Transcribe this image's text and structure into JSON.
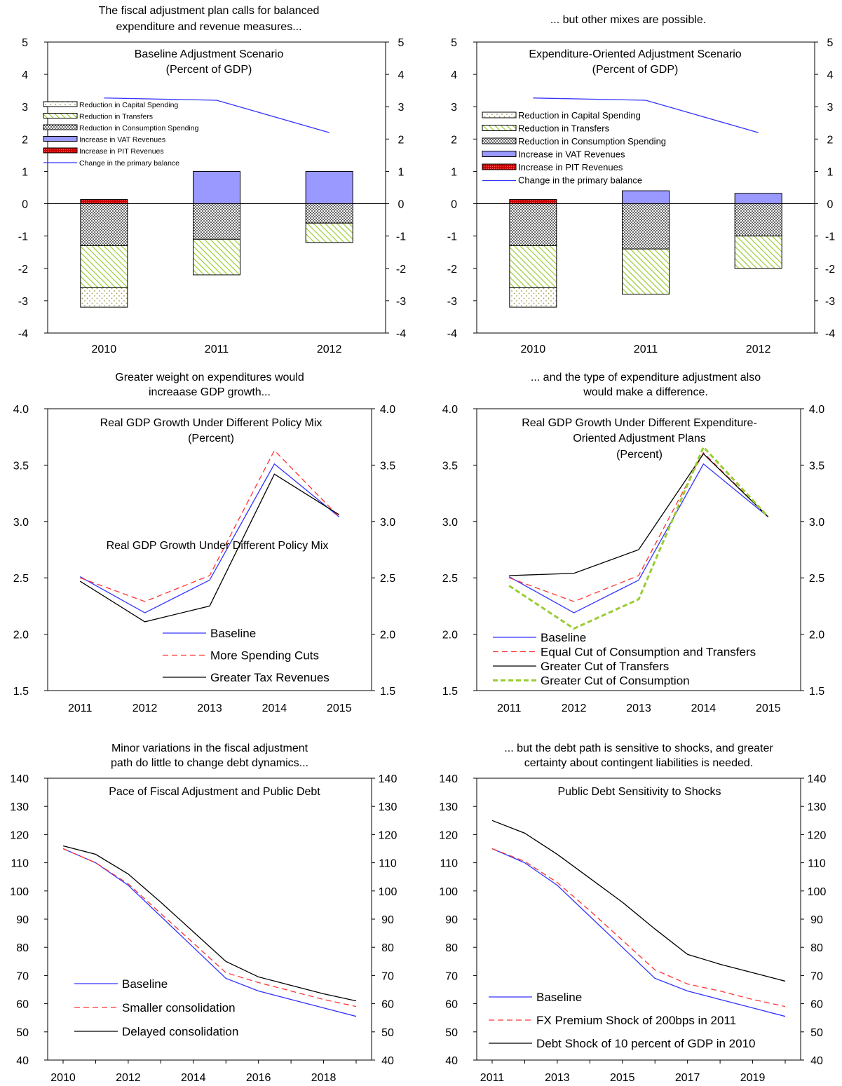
{
  "colors": {
    "line_blue": "#3333ff",
    "line_red": "#ff3333",
    "line_black": "#000000",
    "line_green": "#99cc33",
    "vat_fill": "#9999ff",
    "pit_fill": "#cc0000",
    "transfers_hatch": "#99cc33",
    "capital_dots": "#b8b070"
  },
  "captions": {
    "c1": [
      "The fiscal adjustment plan calls for balanced",
      "expenditure and revenue measures..."
    ],
    "c2": [
      "... but other mixes are possible."
    ],
    "c3": [
      "Greater weight on expenditures would",
      "increaase GDP growth..."
    ],
    "c4": [
      "... and the type of expenditure adjustment also",
      "would make a difference."
    ],
    "c5": [
      "Minor variations in the fiscal adjustment",
      "path do little to change debt dynamics..."
    ],
    "c6": [
      "... but the debt path is sensitive to shocks, and greater",
      "certainty about contingent liabilities is needed."
    ]
  },
  "chart_data": [
    {
      "id": "c1",
      "type": "bar",
      "title": [
        "Baseline Adjustment Scenario",
        "(Percent of GDP)"
      ],
      "categories": [
        "2010",
        "2011",
        "2012"
      ],
      "ylim": [
        -4,
        5
      ],
      "yticks": [
        5,
        4,
        3,
        2,
        1,
        0,
        -1,
        -2,
        -3,
        -4
      ],
      "stacked": true,
      "series": [
        {
          "name": "Reduction in Capital Spending",
          "values": [
            -0.6,
            0,
            0
          ]
        },
        {
          "name": "Reduction in Transfers",
          "values": [
            -1.3,
            -1.1,
            -0.6
          ]
        },
        {
          "name": "Reduction in Consumption Spending",
          "values": [
            -1.3,
            -1.1,
            -0.6
          ]
        },
        {
          "name": "Increase in VAT Revenues",
          "values": [
            0,
            1.0,
            1.0
          ]
        },
        {
          "name": "Increase in PIT Revenues",
          "values": [
            0.13,
            0,
            0
          ]
        }
      ],
      "line": {
        "name": "Change in the primary balance",
        "values": [
          3.27,
          3.2,
          2.2
        ]
      },
      "legend_placement": "top-left"
    },
    {
      "id": "c2",
      "type": "bar",
      "title": [
        "Expenditure-Oriented Adjustment Scenario",
        "(Percent of GDP)"
      ],
      "categories": [
        "2010",
        "2011",
        "2012"
      ],
      "ylim": [
        -4,
        5
      ],
      "yticks": [
        5,
        4,
        3,
        2,
        1,
        0,
        -1,
        -2,
        -3,
        -4
      ],
      "stacked": true,
      "series": [
        {
          "name": "Reduction in Capital Spending",
          "values": [
            -0.6,
            0,
            0
          ]
        },
        {
          "name": "Reduction in Transfers",
          "values": [
            -1.3,
            -1.4,
            -1.0
          ]
        },
        {
          "name": "Reduction in Consumption Spending",
          "values": [
            -1.3,
            -1.4,
            -1.0
          ]
        },
        {
          "name": "Increase in VAT Revenues",
          "values": [
            0,
            0.4,
            0.32
          ]
        },
        {
          "name": "Increase in PIT Revenues",
          "values": [
            0.13,
            0,
            0
          ]
        }
      ],
      "line": {
        "name": "Change in the primary balance",
        "values": [
          3.27,
          3.2,
          2.2
        ]
      },
      "legend_placement": "top-left"
    },
    {
      "id": "c3",
      "type": "line",
      "title": [
        "Real GDP Growth Under Different Policy Mix",
        "(Percent)"
      ],
      "inner_label": "Real GDP Growth Under Different Policy Mix",
      "x": [
        "2011",
        "2012",
        "2013",
        "2014",
        "2015"
      ],
      "ylim": [
        1.5,
        4.0
      ],
      "yticks": [
        "4.0",
        "3.5",
        "3.0",
        "2.5",
        "2.0",
        "1.5"
      ],
      "series": [
        {
          "name": "Baseline",
          "values": [
            2.51,
            2.19,
            2.48,
            3.51,
            3.04
          ]
        },
        {
          "name": "More Spending Cuts",
          "values": [
            2.5,
            2.29,
            2.52,
            3.63,
            3.04
          ]
        },
        {
          "name": "Greater Tax Revenues",
          "values": [
            2.47,
            2.11,
            2.25,
            3.42,
            3.06
          ]
        }
      ],
      "legend_placement": "bottom-right"
    },
    {
      "id": "c4",
      "type": "line",
      "title": [
        "Real GDP Growth Under Different Expenditure-",
        "Oriented Adjustment Plans",
        "(Percent)"
      ],
      "x": [
        "2011",
        "2012",
        "2013",
        "2014",
        "2015"
      ],
      "ylim": [
        1.5,
        4.0
      ],
      "yticks": [
        "4.0",
        "3.5",
        "3.0",
        "2.5",
        "2.0",
        "1.5"
      ],
      "series": [
        {
          "name": "Baseline",
          "values": [
            2.51,
            2.19,
            2.48,
            3.51,
            3.04
          ]
        },
        {
          "name": "Equal Cut of Consumption and Transfers",
          "values": [
            2.5,
            2.29,
            2.52,
            3.61,
            3.04
          ]
        },
        {
          "name": "Greater Cut of Transfers",
          "values": [
            2.52,
            2.54,
            2.75,
            3.6,
            3.04
          ]
        },
        {
          "name": "Greater Cut of Consumption",
          "values": [
            2.43,
            2.05,
            2.31,
            3.66,
            3.04
          ]
        }
      ],
      "legend_placement": "bottom-left"
    },
    {
      "id": "c5",
      "type": "line",
      "title": [
        "Pace of Fiscal Adjustment and Public Debt"
      ],
      "x": [
        "2010",
        "2011",
        "2012",
        "2013",
        "2014",
        "2015",
        "2016",
        "2017",
        "2018",
        "2019"
      ],
      "xticklabels": [
        "2010",
        "2012",
        "2014",
        "2016",
        "2018"
      ],
      "ylim": [
        40,
        140
      ],
      "yticks": [
        "140",
        "130",
        "120",
        "110",
        "100",
        "90",
        "80",
        "70",
        "60",
        "50",
        "40"
      ],
      "series": [
        {
          "name": "Baseline",
          "values": [
            115,
            110,
            102,
            91,
            80,
            69,
            64.5,
            61.5,
            58.5,
            55.5
          ]
        },
        {
          "name": "Smaller consolidation",
          "values": [
            115,
            110,
            102.5,
            92,
            81.5,
            71,
            67.5,
            64.5,
            61.5,
            59
          ]
        },
        {
          "name": "Delayed consolidation",
          "values": [
            116,
            113,
            106,
            96,
            85.5,
            75,
            69.5,
            66.5,
            63.5,
            61
          ]
        }
      ],
      "legend_placement": "bottom-left"
    },
    {
      "id": "c6",
      "type": "line",
      "title": [
        "Public Debt Sensitivity to Shocks"
      ],
      "x": [
        "2011",
        "2012",
        "2013",
        "2014",
        "2015",
        "2016",
        "2017",
        "2018",
        "2019",
        "2020"
      ],
      "xticklabels": [
        "2011",
        "2013",
        "2015",
        "2017",
        "2019"
      ],
      "ylim": [
        40,
        140
      ],
      "yticks": [
        "140",
        "130",
        "120",
        "110",
        "100",
        "90",
        "80",
        "70",
        "60",
        "50",
        "40"
      ],
      "series": [
        {
          "name": "Baseline",
          "values": [
            115,
            110,
            102,
            91,
            80,
            69,
            64.5,
            61.5,
            58.5,
            55.5
          ]
        },
        {
          "name": "FX Premium Shock of 200bps in 2011",
          "values": [
            115,
            110.5,
            103,
            93,
            82.5,
            72,
            67,
            64.5,
            61.5,
            59
          ]
        },
        {
          "name": "Debt Shock of 10 percent of GDP in 2010",
          "values": [
            125,
            120.5,
            113,
            104.5,
            96,
            86.5,
            77.5,
            74,
            71,
            68
          ]
        }
      ],
      "legend_placement": "bottom-left"
    }
  ]
}
